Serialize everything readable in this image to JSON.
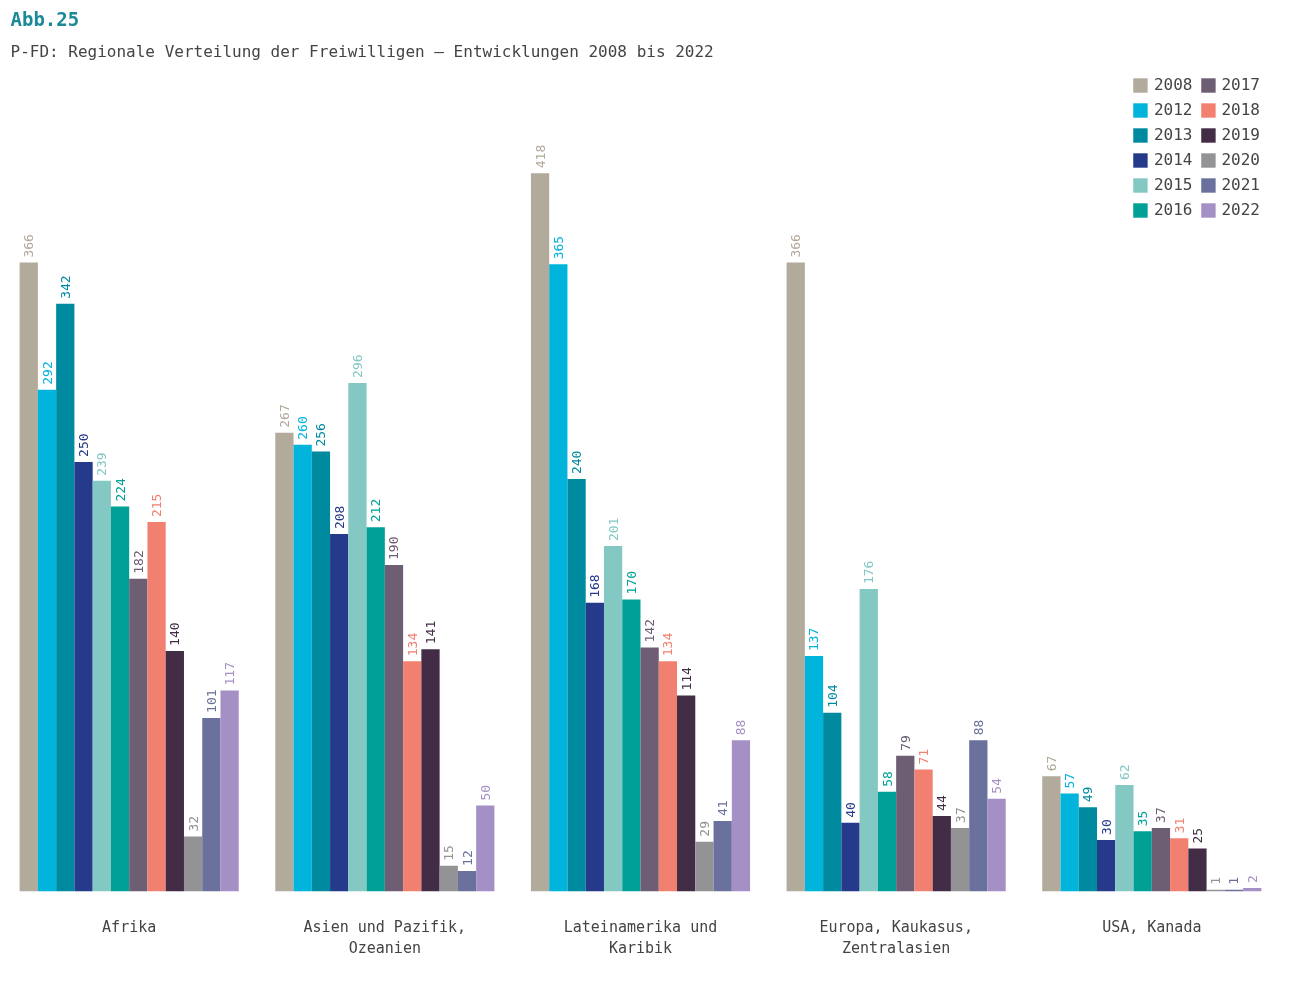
{
  "chart_data": {
    "type": "bar",
    "title": "Abb.25",
    "subtitle": "P-FD: Regionale Verteilung der Freiwilligen – Entwicklungen 2008 bis 2022",
    "legend": "top right",
    "data_labels": true,
    "categories": [
      "Afrika",
      "Asien und Pazifik, Ozeanien",
      "Lateinamerika und Karibik",
      "Europa, Kaukasus, Zentralasien",
      "USA, Kanada"
    ],
    "series": [
      {
        "name": "2008",
        "color": "#b2aa9a",
        "values": [
          366,
          267,
          418,
          366,
          67
        ]
      },
      {
        "name": "2012",
        "color": "#00b4dc",
        "values": [
          292,
          260,
          365,
          137,
          57
        ]
      },
      {
        "name": "2013",
        "color": "#008aa0",
        "values": [
          342,
          256,
          240,
          104,
          49
        ]
      },
      {
        "name": "2014",
        "color": "#253a8a",
        "values": [
          250,
          208,
          168,
          40,
          30
        ]
      },
      {
        "name": "2015",
        "color": "#84c8c4",
        "values": [
          239,
          296,
          201,
          176,
          62
        ]
      },
      {
        "name": "2016",
        "color": "#00a096",
        "values": [
          224,
          212,
          170,
          58,
          35
        ]
      },
      {
        "name": "2017",
        "color": "#6e5e74",
        "values": [
          182,
          190,
          142,
          79,
          37
        ]
      },
      {
        "name": "2018",
        "color": "#f28070",
        "values": [
          215,
          134,
          134,
          71,
          31
        ]
      },
      {
        "name": "2019",
        "color": "#422c46",
        "values": [
          140,
          141,
          114,
          44,
          25
        ]
      },
      {
        "name": "2020",
        "color": "#939396",
        "values": [
          32,
          15,
          29,
          37,
          1
        ]
      },
      {
        "name": "2021",
        "color": "#69719c",
        "values": [
          101,
          12,
          41,
          88,
          1
        ]
      },
      {
        "name": "2022",
        "color": "#a590c5",
        "values": [
          117,
          50,
          88,
          54,
          2
        ]
      }
    ]
  }
}
